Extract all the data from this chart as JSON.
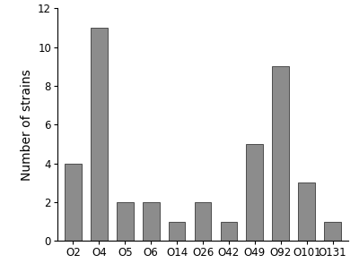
{
  "categories": [
    "O2",
    "O4",
    "O5",
    "O6",
    "O14",
    "O26",
    "O42",
    "O49",
    "O92",
    "O101",
    "O131"
  ],
  "values": [
    4,
    11,
    2,
    2,
    1,
    2,
    1,
    5,
    9,
    3,
    1
  ],
  "bar_color": "#8c8c8c",
  "bar_edgecolor": "#3a3a3a",
  "ylabel": "Number of strains",
  "ylim": [
    0,
    12
  ],
  "yticks": [
    0,
    2,
    4,
    6,
    8,
    10,
    12
  ],
  "background_color": "#ffffff",
  "bar_linewidth": 0.6,
  "ylabel_fontsize": 10,
  "tick_fontsize": 8.5,
  "bar_width": 0.65
}
